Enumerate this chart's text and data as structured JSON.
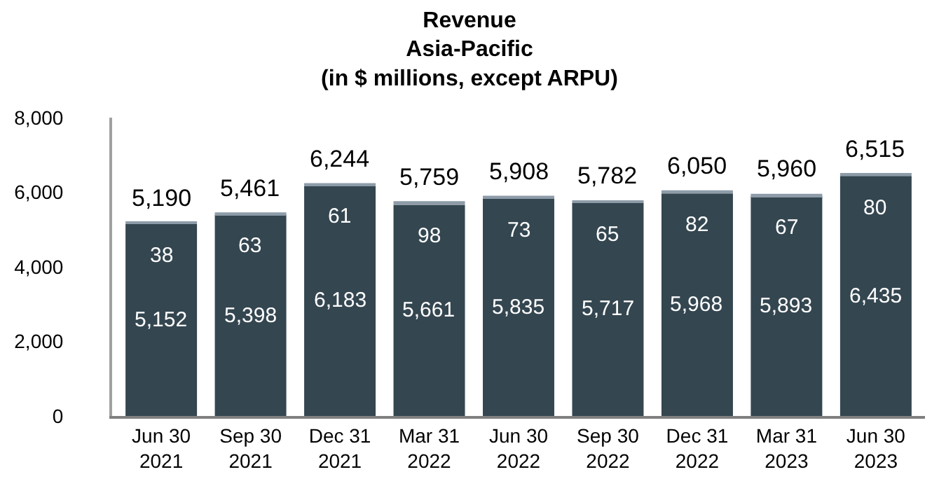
{
  "chart_data": {
    "type": "bar",
    "stacked": true,
    "title": "Revenue\nAsia-Pacific\n(in $ millions, except ARPU)",
    "categories": [
      "Jun 30\n2021",
      "Sep 30\n2021",
      "Dec 31\n2021",
      "Mar 31\n2022",
      "Jun 30\n2022",
      "Sep 30\n2022",
      "Dec 31\n2022",
      "Mar 31\n2023",
      "Jun 30\n2023"
    ],
    "series": [
      {
        "color": "#344650",
        "values": [
          5152,
          5398,
          6183,
          5661,
          5835,
          5717,
          5968,
          5893,
          6435
        ],
        "value_labels": [
          "5,152",
          "5,398",
          "6,183",
          "5,661",
          "5,835",
          "5,717",
          "5,968",
          "5,893",
          "6,435"
        ]
      },
      {
        "color": "#8d9ca8",
        "values": [
          38,
          63,
          61,
          98,
          73,
          65,
          82,
          67,
          80
        ],
        "value_labels": [
          "38",
          "63",
          "61",
          "98",
          "73",
          "65",
          "82",
          "67",
          "80"
        ]
      }
    ],
    "totals": [
      "5,190",
      "5,461",
      "6,244",
      "5,759",
      "5,908",
      "5,782",
      "6,050",
      "5,960",
      "6,515"
    ],
    "ylim": [
      0,
      8000
    ],
    "yticks": [
      {
        "value": 0,
        "label": "0"
      },
      {
        "value": 2000,
        "label": "2,000"
      },
      {
        "value": 4000,
        "label": "4,000"
      },
      {
        "value": 6000,
        "label": "6,000"
      },
      {
        "value": 8000,
        "label": "8,000"
      }
    ],
    "ylabel": null
  }
}
